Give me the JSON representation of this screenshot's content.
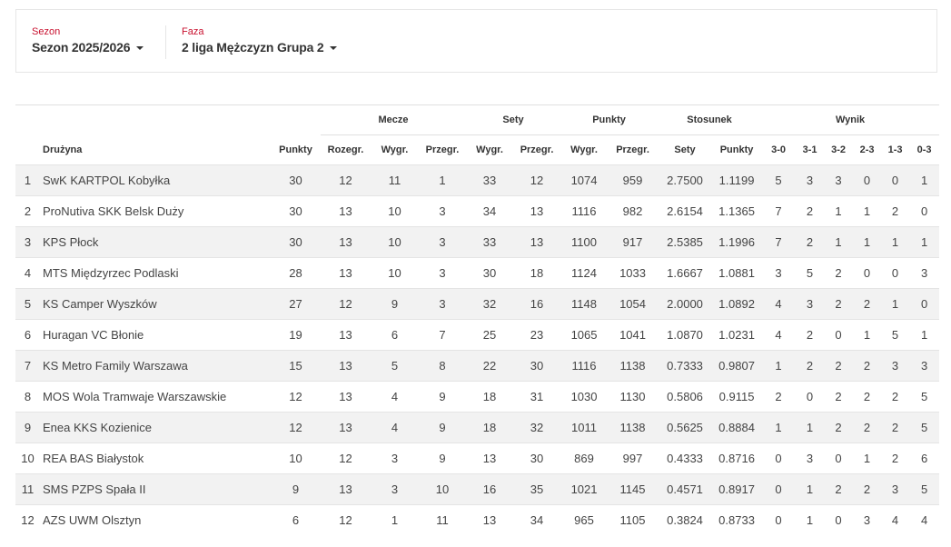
{
  "filters": {
    "season": {
      "label": "Sezon",
      "value": "Sezon 2025/2026"
    },
    "phase": {
      "label": "Faza",
      "value": "2 liga Mężczyzn Grupa 2"
    }
  },
  "colors": {
    "accent": "#c8102e",
    "stripe": "#f2f2f2"
  },
  "table": {
    "groups": {
      "mecze": "Mecze",
      "sety": "Sety",
      "punkty": "Punkty",
      "stosunek": "Stosunek",
      "wynik": "Wynik"
    },
    "columns": [
      "",
      "Drużyna",
      "Punkty",
      "Rozegr.",
      "Wygr.",
      "Przegr.",
      "Wygr.",
      "Przegr.",
      "Wygr.",
      "Przegr.",
      "Sety",
      "Punkty",
      "3-0",
      "3-1",
      "3-2",
      "2-3",
      "1-3",
      "0-3"
    ],
    "rows": [
      [
        "1",
        "SwK KARTPOL Kobyłka",
        "30",
        "12",
        "11",
        "1",
        "33",
        "12",
        "1074",
        "959",
        "2.7500",
        "1.1199",
        "5",
        "3",
        "3",
        "0",
        "0",
        "1"
      ],
      [
        "2",
        "ProNutiva SKK Belsk Duży",
        "30",
        "13",
        "10",
        "3",
        "34",
        "13",
        "1116",
        "982",
        "2.6154",
        "1.1365",
        "7",
        "2",
        "1",
        "1",
        "2",
        "0"
      ],
      [
        "3",
        "KPS Płock",
        "30",
        "13",
        "10",
        "3",
        "33",
        "13",
        "1100",
        "917",
        "2.5385",
        "1.1996",
        "7",
        "2",
        "1",
        "1",
        "1",
        "1"
      ],
      [
        "4",
        "MTS Międzyrzec Podlaski",
        "28",
        "13",
        "10",
        "3",
        "30",
        "18",
        "1124",
        "1033",
        "1.6667",
        "1.0881",
        "3",
        "5",
        "2",
        "0",
        "0",
        "3"
      ],
      [
        "5",
        "KS Camper Wyszków",
        "27",
        "12",
        "9",
        "3",
        "32",
        "16",
        "1148",
        "1054",
        "2.0000",
        "1.0892",
        "4",
        "3",
        "2",
        "2",
        "1",
        "0"
      ],
      [
        "6",
        "Huragan VC Błonie",
        "19",
        "13",
        "6",
        "7",
        "25",
        "23",
        "1065",
        "1041",
        "1.0870",
        "1.0231",
        "4",
        "2",
        "0",
        "1",
        "5",
        "1"
      ],
      [
        "7",
        "KS Metro Family Warszawa",
        "15",
        "13",
        "5",
        "8",
        "22",
        "30",
        "1116",
        "1138",
        "0.7333",
        "0.9807",
        "1",
        "2",
        "2",
        "2",
        "3",
        "3"
      ],
      [
        "8",
        "MOS Wola Tramwaje Warszawskie",
        "12",
        "13",
        "4",
        "9",
        "18",
        "31",
        "1030",
        "1130",
        "0.5806",
        "0.9115",
        "2",
        "0",
        "2",
        "2",
        "2",
        "5"
      ],
      [
        "9",
        "Enea KKS Kozienice",
        "12",
        "13",
        "4",
        "9",
        "18",
        "32",
        "1011",
        "1138",
        "0.5625",
        "0.8884",
        "1",
        "1",
        "2",
        "2",
        "2",
        "5"
      ],
      [
        "10",
        "REA BAS Białystok",
        "10",
        "12",
        "3",
        "9",
        "13",
        "30",
        "869",
        "997",
        "0.4333",
        "0.8716",
        "0",
        "3",
        "0",
        "1",
        "2",
        "6"
      ],
      [
        "11",
        "SMS PZPS Spała II",
        "9",
        "13",
        "3",
        "10",
        "16",
        "35",
        "1021",
        "1145",
        "0.4571",
        "0.8917",
        "0",
        "1",
        "2",
        "2",
        "3",
        "5"
      ],
      [
        "12",
        "AZS UWM Olsztyn",
        "6",
        "12",
        "1",
        "11",
        "13",
        "34",
        "965",
        "1105",
        "0.3824",
        "0.8733",
        "0",
        "1",
        "0",
        "3",
        "4",
        "4"
      ]
    ]
  }
}
